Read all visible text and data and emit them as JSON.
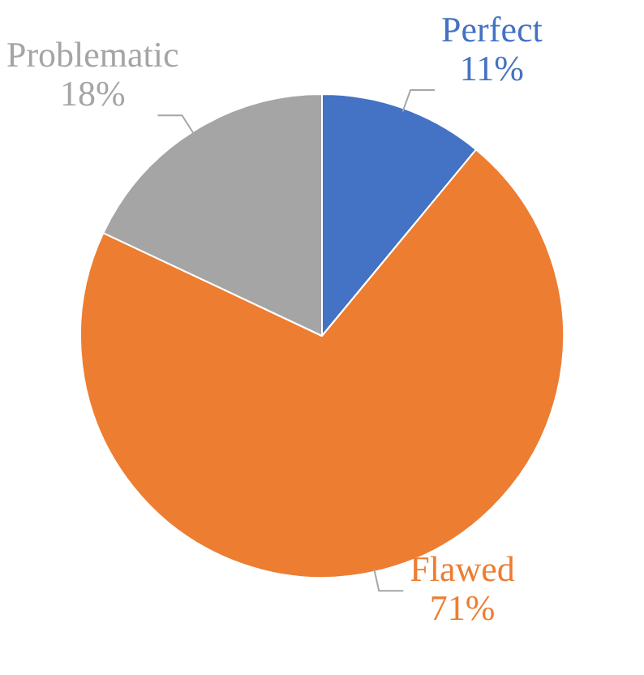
{
  "chart_data": {
    "type": "pie",
    "categories": [
      "Perfect",
      "Flawed",
      "Problematic"
    ],
    "values": [
      11,
      71,
      18
    ],
    "value_labels": [
      "11%",
      "71%",
      "18%"
    ],
    "colors": [
      "#4472c4",
      "#ed7d31",
      "#a5a5a5"
    ],
    "legend": false
  }
}
